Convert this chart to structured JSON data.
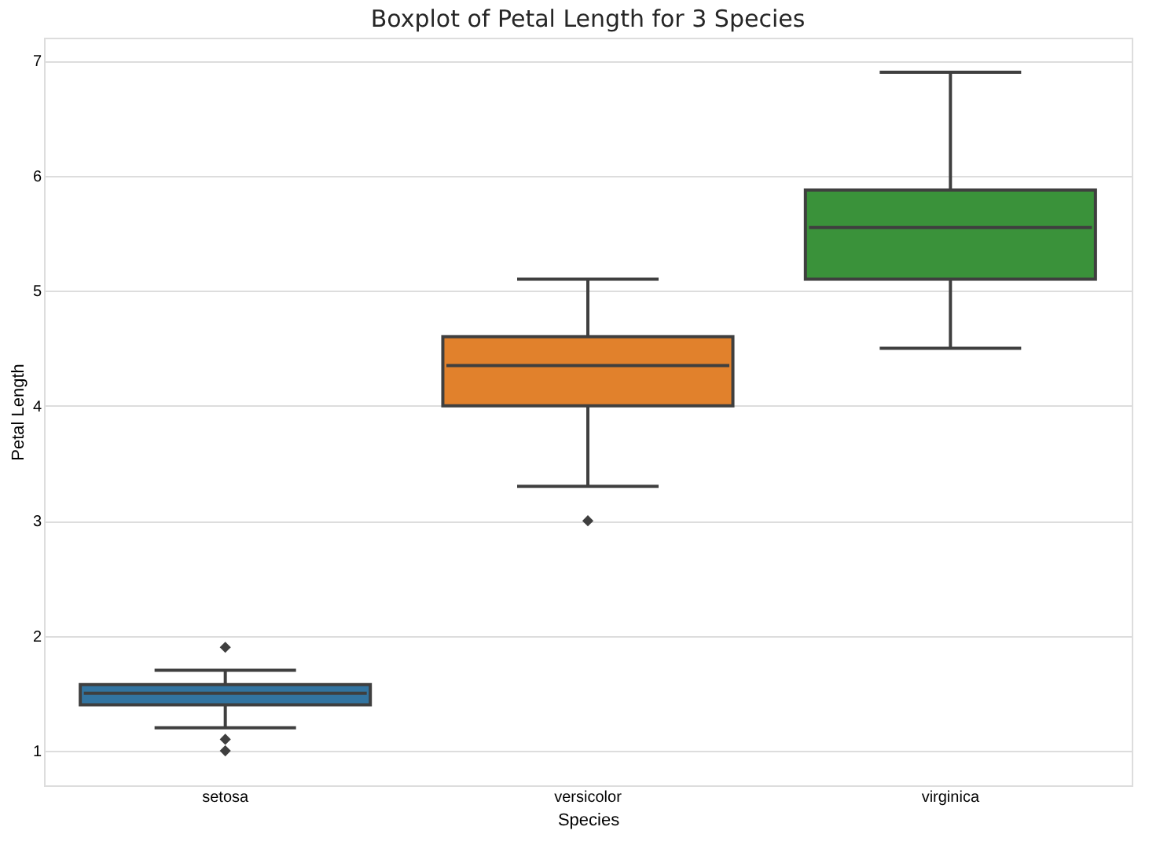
{
  "chart_data": {
    "type": "box",
    "title": "Boxplot of Petal Length for 3 Species",
    "xlabel": "Species",
    "ylabel": "Petal Length",
    "categories": [
      "setosa",
      "versicolor",
      "virginica"
    ],
    "colors": [
      "#3274a1",
      "#e1812c",
      "#3a923a"
    ],
    "boxes": [
      {
        "low": 1.2,
        "q1": 1.4,
        "median": 1.5,
        "q3": 1.575,
        "high": 1.7,
        "outliers": [
          1.0,
          1.1,
          1.9
        ]
      },
      {
        "low": 3.3,
        "q1": 4.0,
        "median": 4.35,
        "q3": 4.6,
        "high": 5.1,
        "outliers": [
          3.0
        ]
      },
      {
        "low": 4.5,
        "q1": 5.1,
        "median": 5.55,
        "q3": 5.875,
        "high": 6.9
      }
    ],
    "ylim": [
      0.7,
      7.2
    ],
    "yticks": [
      1,
      2,
      3,
      4,
      5,
      6,
      7
    ],
    "grid": "y",
    "marker": "diamond"
  }
}
